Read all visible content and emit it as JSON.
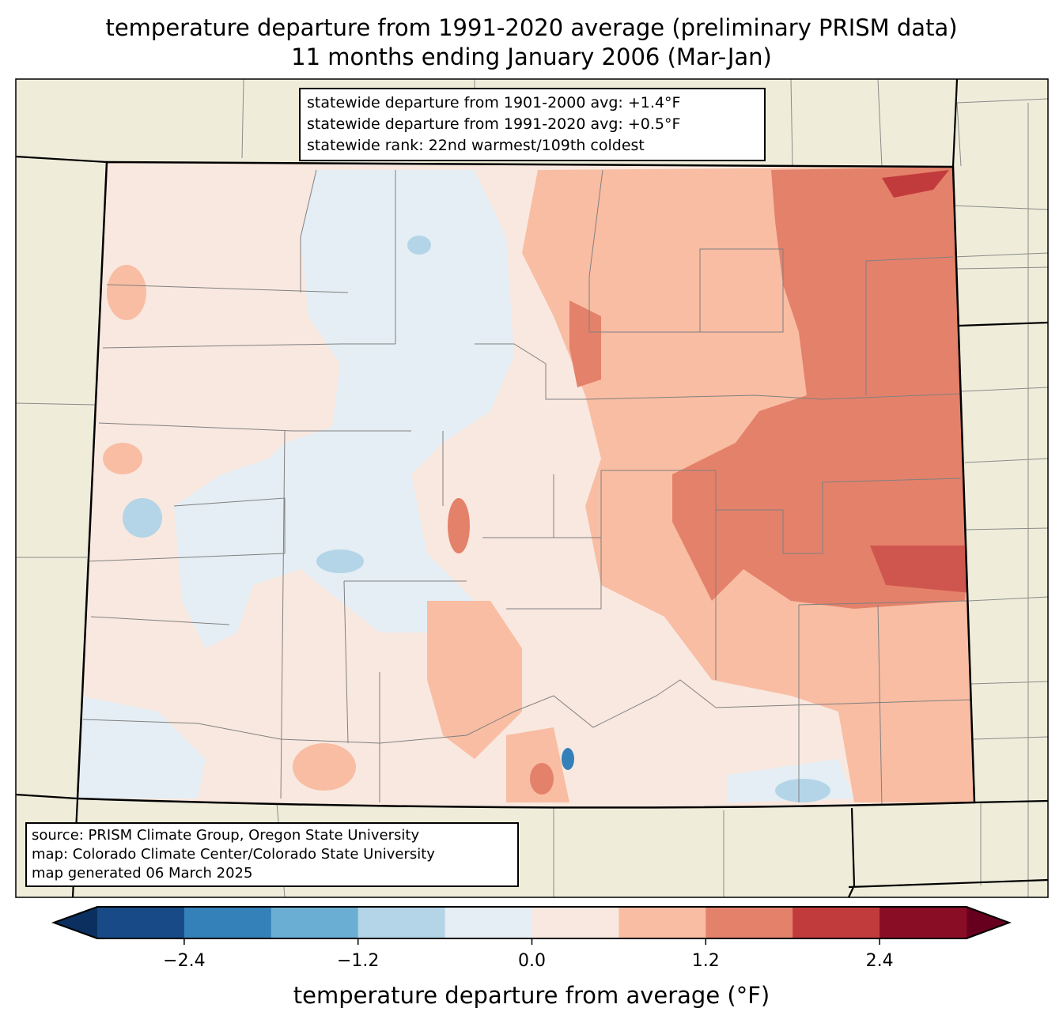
{
  "title": {
    "line1": "temperature departure from 1991-2020 average (preliminary PRISM data)",
    "line2": "11 months ending January 2006 (Mar-Jan)"
  },
  "stats": {
    "line1": "statewide departure from 1901-2000 avg: +1.4°F",
    "line2": "statewide departure from 1991-2020 avg: +0.5°F",
    "line3": "statewide rank: 22nd warmest/109th coldest"
  },
  "source": {
    "line1": "source: PRISM Climate Group, Oregon State University",
    "line2": "map: Colorado Climate Center/Colorado State University",
    "line3": "map generated 06 March 2025"
  },
  "colorbar": {
    "label": "temperature departure from average (°F)",
    "levels": [
      -3.0,
      -2.4,
      -1.8,
      -1.2,
      -0.6,
      0.0,
      0.6,
      1.2,
      1.8,
      2.4,
      3.0
    ],
    "colors": [
      "#174a86",
      "#3480b9",
      "#6aaed3",
      "#b3d5e7",
      "#e4eef4",
      "#f9e8df",
      "#f8bda3",
      "#e4816a",
      "#c23b3c",
      "#890d25"
    ],
    "extend_low_color": "#0b3060",
    "extend_high_color": "#67001f",
    "ticks": [
      "−2.4",
      "−1.2",
      "0.0",
      "1.2",
      "2.4"
    ],
    "tick_values": [
      -2.4,
      -1.2,
      0.0,
      1.2,
      2.4
    ]
  },
  "colors": {
    "land": "#efedda",
    "county_line": "#808080"
  }
}
